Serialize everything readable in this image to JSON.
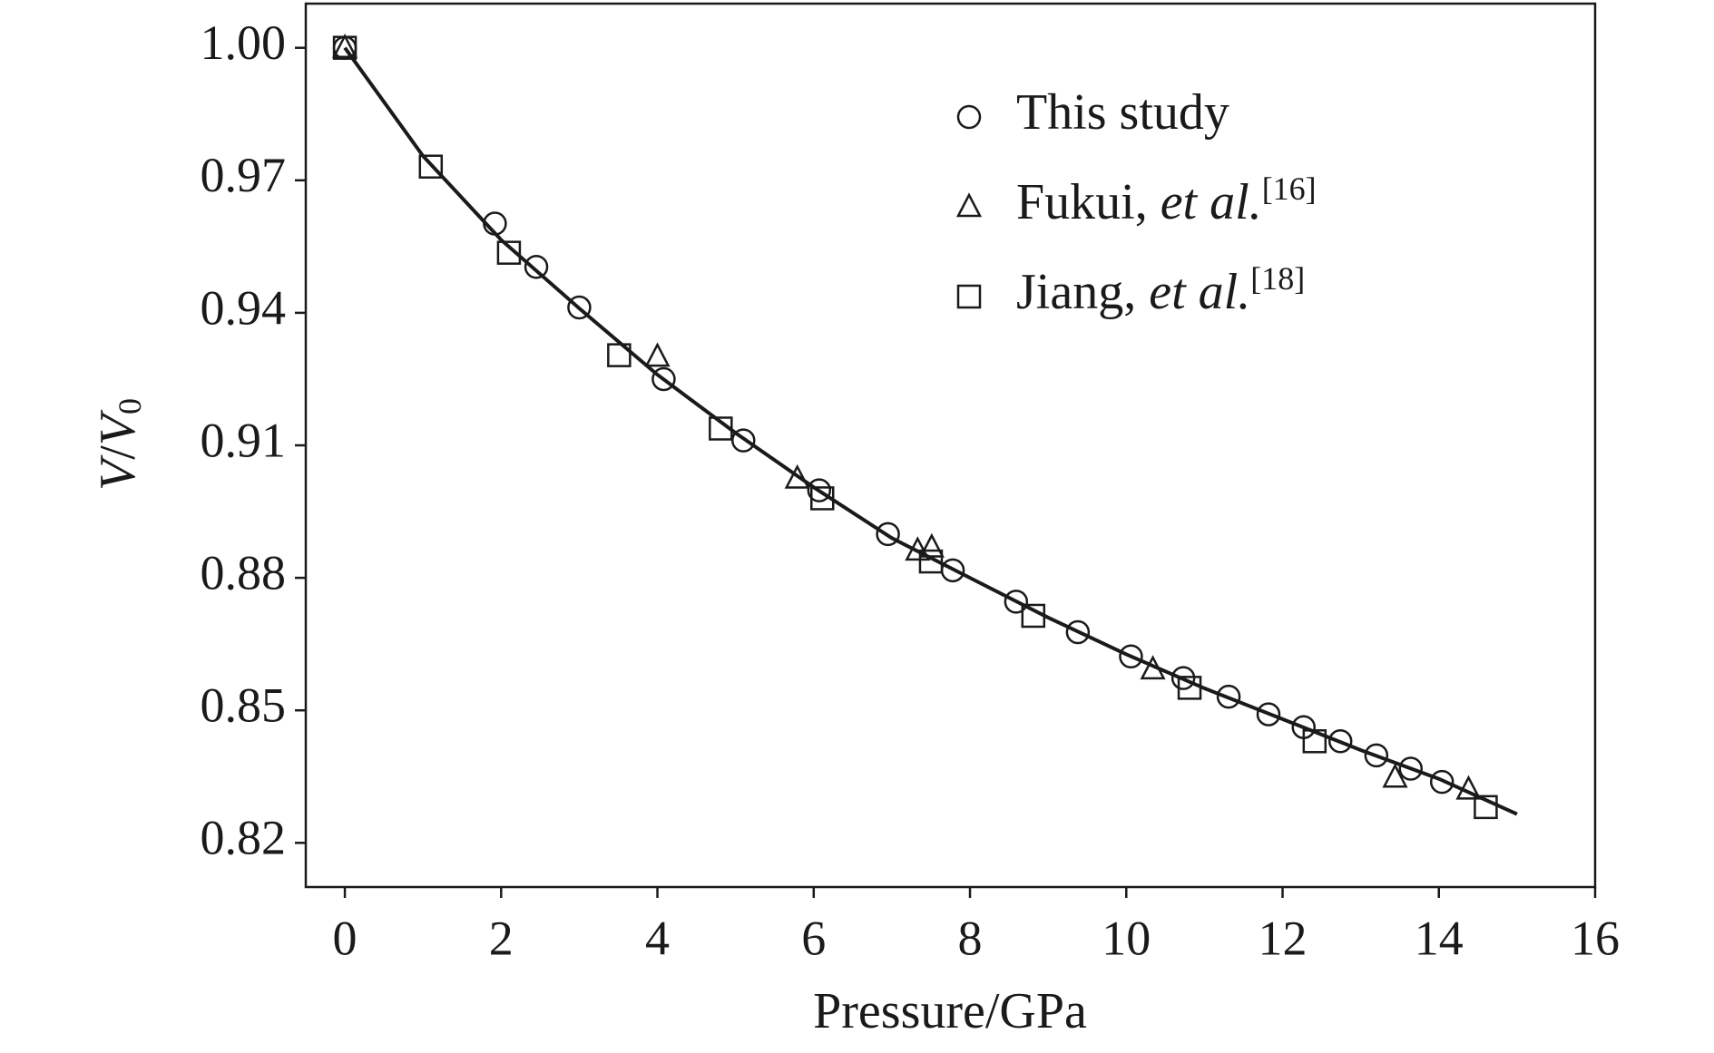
{
  "chart_data": {
    "type": "scatter",
    "x_label": "Pressure/GPa",
    "y_label": "V/V0",
    "xlim": [
      -0.5,
      16
    ],
    "ylim": [
      0.81,
      1.01
    ],
    "xticks": [
      0,
      2,
      4,
      6,
      8,
      10,
      12,
      14,
      16
    ],
    "yticks": [
      {
        "value": 0.82,
        "label": "0.82"
      },
      {
        "value": 0.85,
        "label": "0.85"
      },
      {
        "value": 0.88,
        "label": "0.88"
      },
      {
        "value": 0.91,
        "label": "0.91"
      },
      {
        "value": 0.94,
        "label": "0.94"
      },
      {
        "value": 0.97,
        "label": "0.97"
      },
      {
        "value": 1.0,
        "label": "1.00"
      }
    ],
    "series": [
      {
        "name": "This study",
        "marker": "circle",
        "color": "#1a1a1a",
        "x": [
          0,
          1.92,
          2.45,
          3.0,
          4.08,
          5.1,
          6.07,
          6.95,
          7.78,
          8.59,
          9.38,
          10.06,
          10.73,
          11.31,
          11.82,
          12.27,
          12.74,
          13.2,
          13.64,
          14.04
        ],
        "values": [
          1.0,
          0.9602,
          0.9504,
          0.9412,
          0.925,
          0.9111,
          0.8998,
          0.8899,
          0.8817,
          0.8746,
          0.8677,
          0.8622,
          0.8573,
          0.8531,
          0.8491,
          0.8462,
          0.843,
          0.8398,
          0.8368,
          0.8338
        ]
      },
      {
        "name": "Fukui, et al.[16]",
        "marker": "triangle",
        "color": "#1a1a1a",
        "x": [
          0,
          4.0,
          5.79,
          7.33,
          7.51,
          10.34,
          13.44,
          14.38
        ],
        "values": [
          1.0,
          0.9301,
          0.9025,
          0.8862,
          0.8869,
          0.8593,
          0.8348,
          0.8321
        ]
      },
      {
        "name": "Jiang, et al.[18]",
        "marker": "square",
        "color": "#1a1a1a",
        "x": [
          0,
          1.1,
          2.1,
          3.51,
          4.81,
          6.11,
          7.5,
          8.81,
          10.81,
          12.41,
          14.6
        ],
        "values": [
          1.0,
          0.9731,
          0.9536,
          0.9304,
          0.9138,
          0.898,
          0.8837,
          0.8714,
          0.8551,
          0.843,
          0.8281
        ]
      }
    ],
    "fit": {
      "color": "#1a1a1a",
      "x": [
        0,
        1,
        2,
        3,
        4,
        5,
        6,
        7,
        8,
        9,
        10,
        11,
        12,
        13,
        14,
        15
      ],
      "values": [
        1.0,
        0.9755,
        0.9565,
        0.941,
        0.926,
        0.9128,
        0.9005,
        0.889,
        0.88,
        0.871,
        0.8627,
        0.855,
        0.848,
        0.841,
        0.8345,
        0.8265
      ]
    }
  }
}
